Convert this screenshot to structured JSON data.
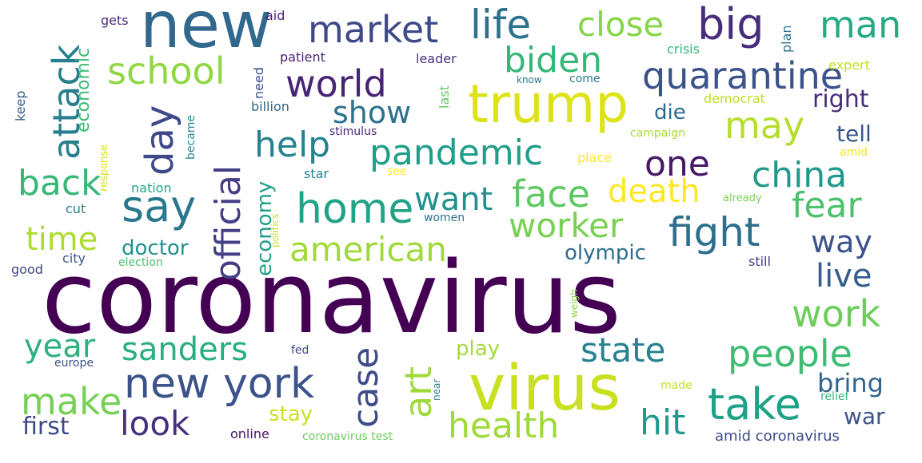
{
  "word_cloud": {
    "words": [
      {
        "text": "coronavirus",
        "color": "#440154"
      },
      {
        "text": "virus",
        "color": "#c8e020"
      },
      {
        "text": "new",
        "color": "#31688e"
      },
      {
        "text": "trump",
        "color": "#dde318"
      },
      {
        "text": "new york",
        "color": "#3b528b"
      },
      {
        "text": "take",
        "color": "#1fa187"
      },
      {
        "text": "market",
        "color": "#3e4989"
      },
      {
        "text": "life",
        "color": "#2d718e"
      },
      {
        "text": "big",
        "color": "#472d7b"
      },
      {
        "text": "close",
        "color": "#86d549"
      },
      {
        "text": "man",
        "color": "#25ab82"
      },
      {
        "text": "biden",
        "color": "#35b779"
      },
      {
        "text": "school",
        "color": "#90d743"
      },
      {
        "text": "quarantine",
        "color": "#3b528b"
      },
      {
        "text": "world",
        "color": "#482475"
      },
      {
        "text": "show",
        "color": "#2c728e"
      },
      {
        "text": "attack",
        "color": "#277f8e"
      },
      {
        "text": "day",
        "color": "#3f4889"
      },
      {
        "text": "say",
        "color": "#2a788e"
      },
      {
        "text": "help",
        "color": "#26828e"
      },
      {
        "text": "pandemic",
        "color": "#1f9e89"
      },
      {
        "text": "may",
        "color": "#b5de2b"
      },
      {
        "text": "one",
        "color": "#481769"
      },
      {
        "text": "china",
        "color": "#1f9a8a"
      },
      {
        "text": "back",
        "color": "#37b878"
      },
      {
        "text": "home",
        "color": "#20a386"
      },
      {
        "text": "official",
        "color": "#433e85"
      },
      {
        "text": "face",
        "color": "#5ec962"
      },
      {
        "text": "want",
        "color": "#21918c"
      },
      {
        "text": "death",
        "color": "#fde725"
      },
      {
        "text": "fight",
        "color": "#2e6f8e"
      },
      {
        "text": "fear",
        "color": "#4ac16d"
      },
      {
        "text": "time",
        "color": "#addc30"
      },
      {
        "text": "american",
        "color": "#a0da39"
      },
      {
        "text": "worker",
        "color": "#7ad151"
      },
      {
        "text": "way",
        "color": "#3b528b"
      },
      {
        "text": "doctor",
        "color": "#21918c"
      },
      {
        "text": "economy",
        "color": "#1f9e89"
      },
      {
        "text": "olympic",
        "color": "#2f6c8e"
      },
      {
        "text": "live",
        "color": "#365c8d"
      },
      {
        "text": "work",
        "color": "#6ccd5a"
      },
      {
        "text": "year",
        "color": "#2db27d"
      },
      {
        "text": "sanders",
        "color": "#28ae80"
      },
      {
        "text": "state",
        "color": "#26828e"
      },
      {
        "text": "people",
        "color": "#3dbc74"
      },
      {
        "text": "case",
        "color": "#3e4c8a"
      },
      {
        "text": "art",
        "color": "#9fda3a"
      },
      {
        "text": "make",
        "color": "#75d054"
      },
      {
        "text": "look",
        "color": "#46307e"
      },
      {
        "text": "health",
        "color": "#a0da39"
      },
      {
        "text": "hit",
        "color": "#1e9b8a"
      },
      {
        "text": "bring",
        "color": "#32658e"
      },
      {
        "text": "war",
        "color": "#3b528b"
      },
      {
        "text": "first",
        "color": "#3e4a89"
      },
      {
        "text": "stay",
        "color": "#cae11f"
      },
      {
        "text": "play",
        "color": "#a5db36"
      },
      {
        "text": "right",
        "color": "#472c7a"
      },
      {
        "text": "tell",
        "color": "#39568c"
      },
      {
        "text": "die",
        "color": "#2f6b8e"
      },
      {
        "text": "economic",
        "color": "#3dbc74"
      },
      {
        "text": "aid",
        "color": "#481f70"
      },
      {
        "text": "gets",
        "color": "#482878"
      },
      {
        "text": "patient",
        "color": "#482173"
      },
      {
        "text": "leader",
        "color": "#46337f"
      },
      {
        "text": "plan",
        "color": "#2d708e"
      },
      {
        "text": "crisis",
        "color": "#35b779"
      },
      {
        "text": "expert",
        "color": "#c2df23"
      },
      {
        "text": "need",
        "color": "#3b528b"
      },
      {
        "text": "last",
        "color": "#5ec962"
      },
      {
        "text": "know",
        "color": "#29798e"
      },
      {
        "text": "come",
        "color": "#2a788e"
      },
      {
        "text": "billion",
        "color": "#31688e"
      },
      {
        "text": "democrat",
        "color": "#bddf26"
      },
      {
        "text": "stimulus",
        "color": "#482576"
      },
      {
        "text": "response",
        "color": "#d8e219"
      },
      {
        "text": "became",
        "color": "#25848e"
      },
      {
        "text": "keep",
        "color": "#365d8d"
      },
      {
        "text": "campaign",
        "color": "#a8db34"
      },
      {
        "text": "amid",
        "color": "#f1e51d"
      },
      {
        "text": "place",
        "color": "#fde725"
      },
      {
        "text": "see",
        "color": "#fde725"
      },
      {
        "text": "star",
        "color": "#24868e"
      },
      {
        "text": "nation",
        "color": "#22a785"
      },
      {
        "text": "politics",
        "color": "#c8e020"
      },
      {
        "text": "already",
        "color": "#7ad151"
      },
      {
        "text": "cut",
        "color": "#26828e"
      },
      {
        "text": "women",
        "color": "#2c728e"
      },
      {
        "text": "city",
        "color": "#3b528b"
      },
      {
        "text": "election",
        "color": "#4ac16d"
      },
      {
        "text": "good",
        "color": "#3f4788"
      },
      {
        "text": "still",
        "color": "#443a83"
      },
      {
        "text": "weigh",
        "color": "#8bd646"
      },
      {
        "text": "europe",
        "color": "#3b528b"
      },
      {
        "text": "fed",
        "color": "#3e4989"
      },
      {
        "text": "near",
        "color": "#26828e"
      },
      {
        "text": "made",
        "color": "#c5e021"
      },
      {
        "text": "relief",
        "color": "#35b779"
      },
      {
        "text": "online",
        "color": "#481668"
      },
      {
        "text": "coronavirus test",
        "color": "#6ccd5a"
      },
      {
        "text": "amid coronavirus",
        "color": "#3e4a89"
      }
    ]
  }
}
